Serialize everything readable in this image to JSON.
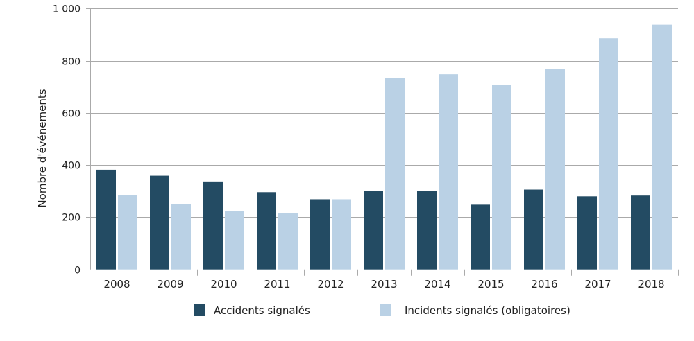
{
  "chart_data": {
    "type": "bar",
    "title": "",
    "xlabel": "",
    "ylabel": "Nombre d'événements",
    "ylim": [
      0,
      1000
    ],
    "yticks": [
      0,
      200,
      400,
      600,
      800,
      1000
    ],
    "ytick_labels": [
      "0",
      "200",
      "400",
      "600",
      "800",
      "1 000"
    ],
    "grid": true,
    "legend_position": "bottom",
    "categories": [
      "2008",
      "2009",
      "2010",
      "2011",
      "2012",
      "2013",
      "2014",
      "2015",
      "2016",
      "2017",
      "2018"
    ],
    "series": [
      {
        "name": "Accidents signalés",
        "color": "#234B63",
        "values": [
          382,
          359,
          337,
          296,
          269,
          300,
          301,
          248,
          306,
          280,
          283
        ]
      },
      {
        "name": "Incidents signalés (obligatoires)",
        "color": "#BAD1E5",
        "values": [
          285,
          250,
          225,
          217,
          269,
          733,
          748,
          707,
          769,
          886,
          938
        ]
      }
    ]
  }
}
